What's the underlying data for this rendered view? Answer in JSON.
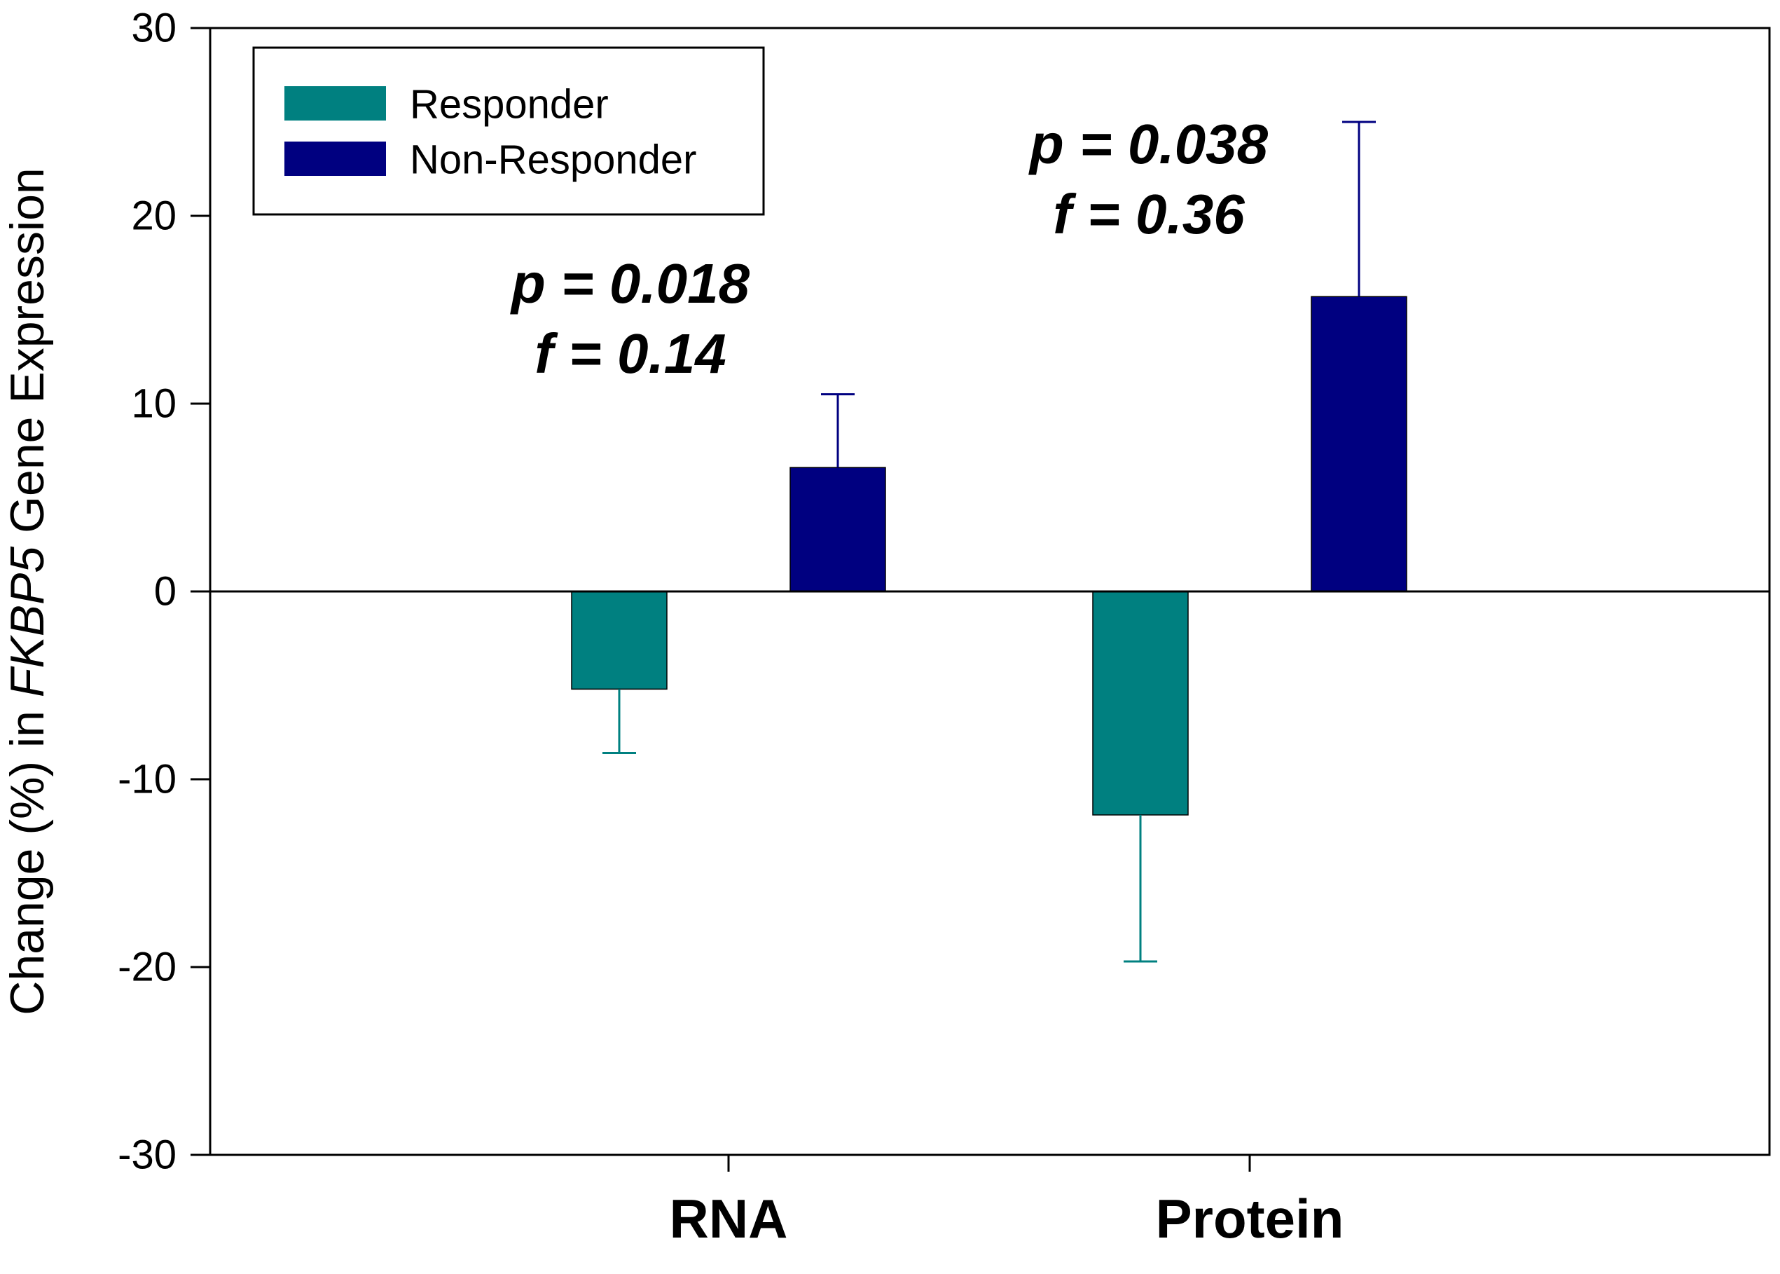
{
  "chart_data": {
    "type": "bar",
    "categories": [
      "RNA",
      "Protein"
    ],
    "series": [
      {
        "name": "Responder",
        "color": "#008080",
        "values": [
          -5.2,
          -11.9
        ],
        "error_low": [
          3.4,
          7.8
        ]
      },
      {
        "name": "Non-Responder",
        "color": "#000080",
        "values": [
          6.6,
          15.7
        ],
        "error_high": [
          3.9,
          9.3
        ]
      }
    ],
    "ylim": [
      -30,
      30
    ],
    "yticks": [
      "30",
      "20",
      "10",
      "0",
      "-10",
      "-20",
      "-30"
    ],
    "ylabel": {
      "prefix": "Change (%) in ",
      "gene": "FKBP5",
      "suffix": " Gene Expression"
    },
    "xlabel": "",
    "legend": {
      "position": "top-left"
    },
    "annotations": [
      {
        "category": "RNA",
        "p_text": "p = 0.018",
        "f_text": "f = 0.14"
      },
      {
        "category": "Protein",
        "p_text": "p = 0.038",
        "f_text": "f = 0.36"
      }
    ]
  }
}
